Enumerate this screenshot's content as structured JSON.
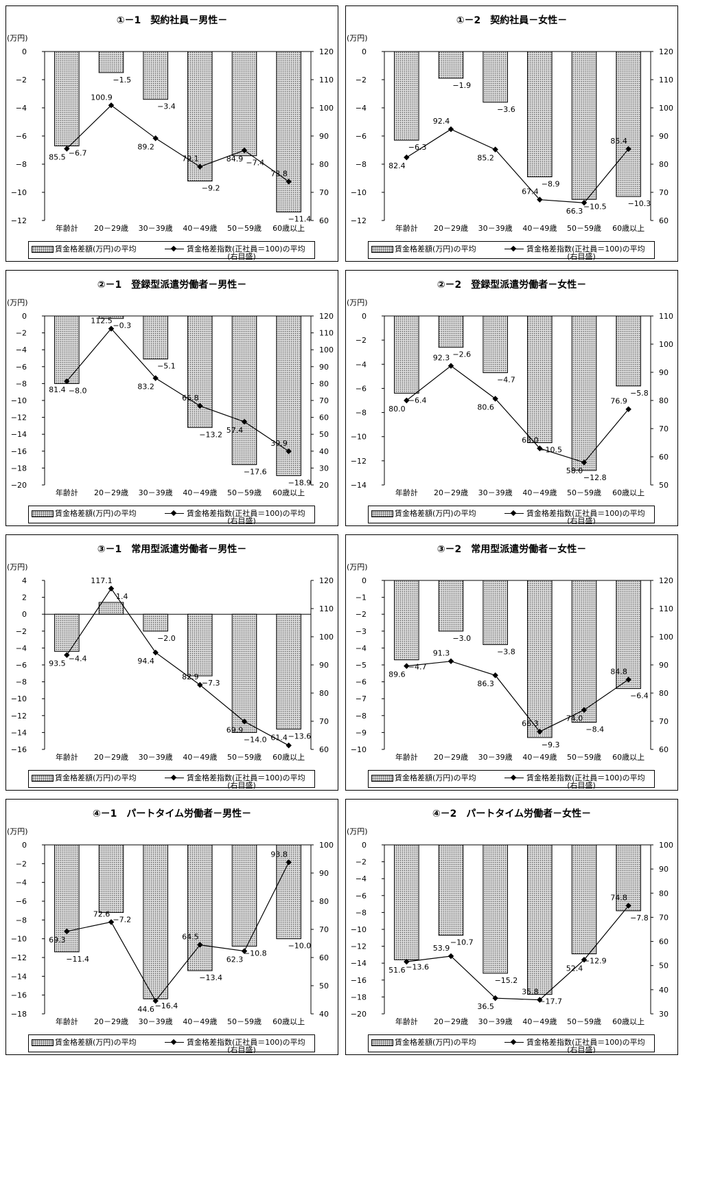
{
  "legend": {
    "bar_label": "賃金格差額(万円)の平均",
    "line_label": "賃金格差指数(正社員＝100)の平均",
    "line_sub": "(右目盛)"
  },
  "unit_label": "(万円)",
  "categories": [
    "年齢計",
    "20－29歳",
    "30－39歳",
    "40－49歳",
    "50－59歳",
    "60歳以上"
  ],
  "chart_data": [
    {
      "type": "bar",
      "title": "①－1　契約社員－男性－",
      "categories": [
        "年齢計",
        "20－29歳",
        "30－39歳",
        "40－49歳",
        "50－59歳",
        "60歳以上"
      ],
      "series": [
        {
          "name": "賃金格差額(万円)の平均",
          "values": [
            -6.7,
            -1.5,
            -3.4,
            -9.2,
            -7.4,
            -11.4
          ]
        },
        {
          "name": "賃金格差指数(正社員＝100)の平均",
          "values": [
            85.5,
            100.9,
            89.2,
            79.1,
            84.9,
            73.8
          ],
          "axis": "right"
        }
      ],
      "ylim": [
        -12,
        0
      ],
      "ystep": 2,
      "y2lim": [
        60,
        120
      ],
      "y2step": 10
    },
    {
      "type": "bar",
      "title": "①－2　契約社員－女性－",
      "categories": [
        "年齢計",
        "20－29歳",
        "30－39歳",
        "40－49歳",
        "50－59歳",
        "60歳以上"
      ],
      "series": [
        {
          "name": "賃金格差額(万円)の平均",
          "values": [
            -6.3,
            -1.9,
            -3.6,
            -8.9,
            -10.5,
            -10.3
          ]
        },
        {
          "name": "賃金格差指数(正社員＝100)の平均",
          "values": [
            82.4,
            92.4,
            85.2,
            67.4,
            66.3,
            85.4
          ],
          "axis": "right"
        }
      ],
      "ylim": [
        -12,
        0
      ],
      "ystep": 2,
      "y2lim": [
        60,
        120
      ],
      "y2step": 10
    },
    {
      "type": "bar",
      "title": "②－1　登録型派遣労働者－男性－",
      "categories": [
        "年齢計",
        "20－29歳",
        "30－39歳",
        "40－49歳",
        "50－59歳",
        "60歳以上"
      ],
      "series": [
        {
          "name": "賃金格差額(万円)の平均",
          "values": [
            -8.0,
            -0.3,
            -5.1,
            -13.2,
            -17.6,
            -18.9
          ]
        },
        {
          "name": "賃金格差指数(正社員＝100)の平均",
          "values": [
            81.4,
            112.5,
            83.2,
            66.8,
            57.4,
            39.9
          ],
          "axis": "right"
        }
      ],
      "ylim": [
        -20,
        0
      ],
      "ystep": 2,
      "y2lim": [
        20,
        120
      ],
      "y2step": 10
    },
    {
      "type": "bar",
      "title": "②－2　登録型派遣労働者－女性－",
      "categories": [
        "年齢計",
        "20－29歳",
        "30－39歳",
        "40－49歳",
        "50－59歳",
        "60歳以上"
      ],
      "series": [
        {
          "name": "賃金格差額(万円)の平均",
          "values": [
            -6.4,
            -2.6,
            -4.7,
            -10.5,
            -12.8,
            -5.8
          ]
        },
        {
          "name": "賃金格差指数(正社員＝100)の平均",
          "values": [
            80.0,
            92.3,
            80.6,
            63.0,
            58.0,
            76.9
          ],
          "axis": "right"
        }
      ],
      "ylim": [
        -14,
        0
      ],
      "ystep": 2,
      "y2lim": [
        50,
        110
      ],
      "y2step": 10
    },
    {
      "type": "bar",
      "title": "③－1　常用型派遣労働者－男性－",
      "categories": [
        "年齢計",
        "20－29歳",
        "30－39歳",
        "40－49歳",
        "50－59歳",
        "60歳以上"
      ],
      "series": [
        {
          "name": "賃金格差額(万円)の平均",
          "values": [
            -4.4,
            1.4,
            -2.0,
            -7.3,
            -14.0,
            -13.6
          ]
        },
        {
          "name": "賃金格差指数(正社員＝100)の平均",
          "values": [
            93.5,
            117.1,
            94.4,
            82.9,
            69.9,
            61.4
          ],
          "axis": "right"
        }
      ],
      "ylim": [
        -16,
        4
      ],
      "ystep": 2,
      "y2lim": [
        60,
        120
      ],
      "y2step": 10
    },
    {
      "type": "bar",
      "title": "③－2　常用型派遣労働者－女性－",
      "categories": [
        "年齢計",
        "20－29歳",
        "30－39歳",
        "40－49歳",
        "50－59歳",
        "60歳以上"
      ],
      "series": [
        {
          "name": "賃金格差額(万円)の平均",
          "values": [
            -4.7,
            -3.0,
            -3.8,
            -9.3,
            -8.4,
            -6.4
          ]
        },
        {
          "name": "賃金格差指数(正社員＝100)の平均",
          "values": [
            89.6,
            91.3,
            86.3,
            66.3,
            74.0,
            84.8
          ],
          "axis": "right"
        }
      ],
      "ylim": [
        -10,
        0
      ],
      "ystep": 1,
      "y2lim": [
        60,
        120
      ],
      "y2step": 10
    },
    {
      "type": "bar",
      "title": "④－1　パートタイム労働者－男性－",
      "categories": [
        "年齢計",
        "20－29歳",
        "30－39歳",
        "40－49歳",
        "50－59歳",
        "60歳以上"
      ],
      "series": [
        {
          "name": "賃金格差額(万円)の平均",
          "values": [
            -11.4,
            -7.2,
            -16.4,
            -13.4,
            -10.8,
            -10.0
          ]
        },
        {
          "name": "賃金格差指数(正社員＝100)の平均",
          "values": [
            69.3,
            72.6,
            44.6,
            64.5,
            62.3,
            93.8
          ],
          "axis": "right"
        }
      ],
      "ylim": [
        -18,
        0
      ],
      "ystep": 2,
      "y2lim": [
        40,
        100
      ],
      "y2step": 10
    },
    {
      "type": "bar",
      "title": "④－2　パートタイム労働者－女性－",
      "categories": [
        "年齢計",
        "20－29歳",
        "30－39歳",
        "40－49歳",
        "50－59歳",
        "60歳以上"
      ],
      "series": [
        {
          "name": "賃金格差額(万円)の平均",
          "values": [
            -13.6,
            -10.7,
            -15.2,
            -17.7,
            -12.9,
            -7.8
          ]
        },
        {
          "name": "賃金格差指数(正社員＝100)の平均",
          "values": [
            51.6,
            53.9,
            36.5,
            35.8,
            52.4,
            74.8
          ],
          "axis": "right"
        }
      ],
      "ylim": [
        -20,
        0
      ],
      "ystep": 2,
      "y2lim": [
        30,
        100
      ],
      "y2step": 10
    }
  ]
}
